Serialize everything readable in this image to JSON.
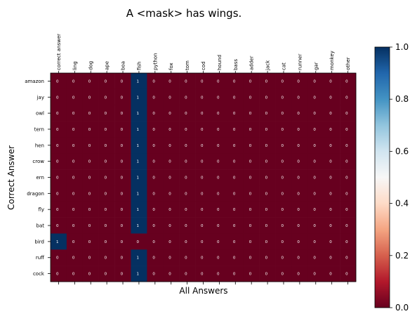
{
  "chart_data": {
    "type": "heatmap",
    "title": "A <mask> has wings.",
    "xlabel": "All Answers",
    "ylabel": "Correct Answer",
    "x_categories": [
      "correct answer",
      "ling",
      "dog",
      "ape",
      "boa",
      "fish",
      "python",
      "fox",
      "tom",
      "cod",
      "hound",
      "bass",
      "adder",
      "jack",
      "cat",
      "runner",
      "gar",
      "monkey",
      "other"
    ],
    "y_categories": [
      "amazon",
      "jay",
      "owl",
      "tern",
      "hen",
      "crow",
      "ern",
      "dragon",
      "fly",
      "bat",
      "bird",
      "ruff",
      "cock"
    ],
    "values": [
      [
        0,
        0,
        0,
        0,
        0,
        1,
        0,
        0,
        0,
        0,
        0,
        0,
        0,
        0,
        0,
        0,
        0,
        0,
        0
      ],
      [
        0,
        0,
        0,
        0,
        0,
        1,
        0,
        0,
        0,
        0,
        0,
        0,
        0,
        0,
        0,
        0,
        0,
        0,
        0
      ],
      [
        0,
        0,
        0,
        0,
        0,
        1,
        0,
        0,
        0,
        0,
        0,
        0,
        0,
        0,
        0,
        0,
        0,
        0,
        0
      ],
      [
        0,
        0,
        0,
        0,
        0,
        1,
        0,
        0,
        0,
        0,
        0,
        0,
        0,
        0,
        0,
        0,
        0,
        0,
        0
      ],
      [
        0,
        0,
        0,
        0,
        0,
        1,
        0,
        0,
        0,
        0,
        0,
        0,
        0,
        0,
        0,
        0,
        0,
        0,
        0
      ],
      [
        0,
        0,
        0,
        0,
        0,
        1,
        0,
        0,
        0,
        0,
        0,
        0,
        0,
        0,
        0,
        0,
        0,
        0,
        0
      ],
      [
        0,
        0,
        0,
        0,
        0,
        1,
        0,
        0,
        0,
        0,
        0,
        0,
        0,
        0,
        0,
        0,
        0,
        0,
        0
      ],
      [
        0,
        0,
        0,
        0,
        0,
        1,
        0,
        0,
        0,
        0,
        0,
        0,
        0,
        0,
        0,
        0,
        0,
        0,
        0
      ],
      [
        0,
        0,
        0,
        0,
        0,
        1,
        0,
        0,
        0,
        0,
        0,
        0,
        0,
        0,
        0,
        0,
        0,
        0,
        0
      ],
      [
        0,
        0,
        0,
        0,
        0,
        1,
        0,
        0,
        0,
        0,
        0,
        0,
        0,
        0,
        0,
        0,
        0,
        0,
        0
      ],
      [
        1,
        0,
        0,
        0,
        0,
        0,
        0,
        0,
        0,
        0,
        0,
        0,
        0,
        0,
        0,
        0,
        0,
        0,
        0
      ],
      [
        0,
        0,
        0,
        0,
        0,
        1,
        0,
        0,
        0,
        0,
        0,
        0,
        0,
        0,
        0,
        0,
        0,
        0,
        0
      ],
      [
        0,
        0,
        0,
        0,
        0,
        1,
        0,
        0,
        0,
        0,
        0,
        0,
        0,
        0,
        0,
        0,
        0,
        0,
        0
      ]
    ],
    "colorbar": {
      "range": [
        0.0,
        1.0
      ],
      "ticks": [
        "0.0",
        "0.2",
        "0.4",
        "0.6",
        "0.8",
        "1.0"
      ],
      "colormap": "RdBu",
      "low_color": "#67001f",
      "high_color": "#053061"
    },
    "x_tick_position": "top",
    "grid": false
  }
}
